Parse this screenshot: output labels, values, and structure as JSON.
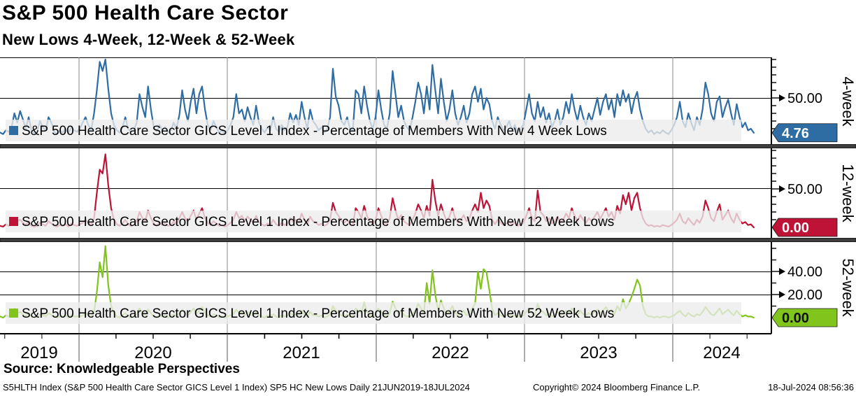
{
  "header": {
    "title": "S&P 500 Health Care Sector",
    "subtitle": "New Lows 4-Week, 12-Week & 52-Week"
  },
  "x_axis": {
    "years": [
      "2019",
      "2020",
      "2021",
      "2022",
      "2023",
      "2024"
    ]
  },
  "footer": {
    "source": "Source: Knowledgeable Perspectives",
    "ticker_line": "S5HLTH Index (S&P 500 Health Care Sector GICS Level 1 Index) SP5 HC New Lows  Daily 21JUN2019-18JUL2024",
    "copyright": "Copyright© 2024 Bloomberg Finance L.P.",
    "timestamp": "18-Jul-2024 08:56:36"
  },
  "chart_data": {
    "type": "line",
    "title": "S&P 500 Health Care Sector",
    "subtitle": "New Lows 4-Week, 12-Week & 52-Week",
    "x_range": "21JUN2019 to 18JUL2024, weekly samples, year gridlines at each January",
    "legend_position": "inside lower-left band of each panel",
    "grid": "on",
    "panels": [
      {
        "axis_label": "4-week",
        "legend": "S&P 500 Health Care Sector GICS Level 1 Index - Percentage of Members With New 4 Week Lows",
        "color": "#2e6da4",
        "value_text_color": "#ffffff",
        "last_value": "4.76",
        "ylim": [
          0,
          103
        ],
        "yticks": [
          {
            "v": 50,
            "label": "50.00"
          }
        ],
        "minor_ticks": [
          10,
          20,
          30,
          40,
          60,
          70,
          80,
          90,
          100
        ],
        "values": [
          5,
          3,
          8,
          6,
          12,
          30,
          18,
          33,
          22,
          10,
          25,
          8,
          4,
          6,
          20,
          12,
          8,
          25,
          18,
          6,
          3,
          8,
          5,
          10,
          4,
          12,
          8,
          6,
          10,
          18,
          25,
          15,
          8,
          30,
          60,
          97,
          85,
          100,
          62,
          30,
          15,
          8,
          5,
          12,
          25,
          10,
          6,
          8,
          18,
          55,
          38,
          25,
          65,
          35,
          12,
          6,
          15,
          8,
          12,
          5,
          8,
          18,
          10,
          28,
          60,
          35,
          20,
          45,
          62,
          30,
          55,
          65,
          35,
          15,
          8,
          20,
          12,
          5,
          8,
          3,
          8,
          15,
          25,
          55,
          30,
          35,
          20,
          38,
          25,
          15,
          40,
          18,
          10,
          5,
          12,
          8,
          25,
          10,
          6,
          15,
          8,
          12,
          30,
          18,
          28,
          15,
          45,
          25,
          10,
          35,
          20,
          15,
          8,
          12,
          5,
          10,
          25,
          88,
          52,
          40,
          20,
          15,
          25,
          10,
          8,
          60,
          55,
          30,
          65,
          40,
          20,
          10,
          25,
          60,
          35,
          15,
          10,
          30,
          85,
          55,
          25,
          40,
          20,
          12,
          8,
          25,
          45,
          70,
          55,
          30,
          65,
          35,
          93,
          60,
          30,
          75,
          45,
          20,
          35,
          60,
          30,
          15,
          25,
          40,
          18,
          30,
          55,
          65,
          45,
          62,
          35,
          50,
          42,
          20,
          10,
          25,
          15,
          8,
          12,
          20,
          8,
          15,
          5,
          10,
          15,
          35,
          55,
          30,
          20,
          45,
          25,
          38,
          18,
          30,
          12,
          20,
          35,
          15,
          25,
          45,
          30,
          55,
          35,
          20,
          40,
          25,
          15,
          30,
          20,
          35,
          50,
          28,
          45,
          55,
          35,
          48,
          25,
          55,
          40,
          60,
          45,
          55,
          30,
          48,
          58,
          35,
          20,
          10,
          5,
          8,
          3,
          6,
          4,
          8,
          5,
          3,
          8,
          15,
          25,
          45,
          20,
          12,
          30,
          18,
          8,
          25,
          15,
          35,
          70,
          55,
          30,
          20,
          45,
          52,
          25,
          38,
          48,
          30,
          15,
          42,
          25,
          12,
          18,
          8,
          10,
          4.76
        ]
      },
      {
        "axis_label": "12-week",
        "legend": "S&P 500 Health Care Sector GICS Level 1 Index - Percentage of Members With New 12 Week Lows",
        "color": "#be1336",
        "value_text_color": "#ffffff",
        "last_value": "0.00",
        "ylim": [
          0,
          103
        ],
        "yticks": [
          {
            "v": 50,
            "label": "50.00"
          }
        ],
        "minor_ticks": [
          10,
          20,
          30,
          40,
          60,
          70,
          80,
          90,
          100
        ],
        "values": [
          2,
          1,
          4,
          2,
          6,
          12,
          8,
          10,
          6,
          3,
          8,
          2,
          1,
          2,
          6,
          4,
          2,
          8,
          5,
          2,
          1,
          3,
          2,
          4,
          1,
          5,
          3,
          2,
          4,
          6,
          10,
          6,
          3,
          12,
          45,
          75,
          70,
          95,
          55,
          25,
          10,
          4,
          2,
          5,
          10,
          4,
          2,
          3,
          8,
          20,
          12,
          8,
          22,
          12,
          5,
          2,
          6,
          3,
          5,
          2,
          3,
          8,
          4,
          12,
          20,
          12,
          8,
          15,
          22,
          10,
          18,
          25,
          12,
          6,
          3,
          8,
          5,
          2,
          3,
          1,
          3,
          6,
          10,
          20,
          12,
          15,
          8,
          14,
          10,
          6,
          15,
          7,
          4,
          2,
          5,
          3,
          10,
          4,
          2,
          6,
          3,
          5,
          12,
          7,
          10,
          6,
          18,
          10,
          4,
          14,
          8,
          6,
          3,
          5,
          2,
          4,
          10,
          32,
          20,
          15,
          8,
          6,
          10,
          4,
          3,
          25,
          20,
          12,
          28,
          15,
          8,
          4,
          10,
          25,
          15,
          6,
          4,
          12,
          38,
          22,
          10,
          16,
          8,
          5,
          3,
          10,
          18,
          30,
          22,
          12,
          28,
          15,
          62,
          35,
          15,
          30,
          18,
          8,
          14,
          25,
          12,
          6,
          10,
          16,
          8,
          12,
          22,
          30,
          20,
          45,
          25,
          35,
          28,
          10,
          4,
          10,
          6,
          3,
          5,
          8,
          3,
          6,
          2,
          4,
          6,
          15,
          25,
          12,
          8,
          48,
          20,
          16,
          8,
          12,
          5,
          8,
          14,
          6,
          10,
          18,
          12,
          25,
          15,
          8,
          16,
          10,
          6,
          12,
          8,
          14,
          20,
          11,
          18,
          25,
          14,
          20,
          10,
          28,
          18,
          42,
          30,
          45,
          22,
          38,
          45,
          25,
          12,
          5,
          2,
          3,
          1,
          2,
          1,
          3,
          2,
          1,
          3,
          6,
          10,
          18,
          8,
          5,
          12,
          7,
          3,
          10,
          6,
          14,
          35,
          25,
          12,
          8,
          20,
          30,
          10,
          16,
          22,
          12,
          6,
          18,
          10,
          5,
          7,
          3,
          4,
          0
        ]
      },
      {
        "axis_label": "52-week",
        "legend": "S&P 500 Health Care Sector GICS Level 1 Index - Percentage of Members With New 52 Week Lows",
        "color": "#80c41c",
        "value_text_color": "#111111",
        "last_value": "0.00",
        "ylim": [
          0,
          66
        ],
        "yticks": [
          {
            "v": 40,
            "label": "40.00"
          },
          {
            "v": 20,
            "label": "20.00"
          }
        ],
        "minor_ticks": [
          10,
          30,
          50,
          60
        ],
        "values": [
          1,
          0,
          2,
          1,
          3,
          8,
          4,
          5,
          3,
          1,
          4,
          1,
          0,
          1,
          3,
          2,
          1,
          4,
          2,
          1,
          0,
          1,
          1,
          2,
          0,
          2,
          1,
          1,
          1,
          2,
          4,
          2,
          1,
          5,
          22,
          48,
          35,
          62,
          28,
          10,
          4,
          1,
          0,
          2,
          4,
          1,
          0,
          1,
          3,
          8,
          4,
          2,
          7,
          4,
          1,
          0,
          2,
          1,
          2,
          0,
          1,
          3,
          1,
          4,
          7,
          4,
          2,
          5,
          8,
          3,
          6,
          9,
          4,
          2,
          1,
          3,
          2,
          0,
          1,
          0,
          1,
          2,
          3,
          7,
          4,
          5,
          2,
          5,
          3,
          2,
          5,
          2,
          1,
          0,
          2,
          1,
          3,
          1,
          0,
          2,
          1,
          2,
          4,
          2,
          3,
          2,
          6,
          3,
          1,
          5,
          2,
          2,
          1,
          2,
          0,
          1,
          3,
          10,
          6,
          4,
          2,
          1,
          3,
          1,
          1,
          8,
          6,
          4,
          13,
          5,
          2,
          1,
          3,
          8,
          5,
          2,
          1,
          4,
          14,
          8,
          3,
          6,
          2,
          1,
          1,
          3,
          6,
          12,
          8,
          4,
          30,
          12,
          41,
          20,
          6,
          15,
          8,
          3,
          5,
          10,
          4,
          2,
          3,
          6,
          2,
          4,
          8,
          12,
          40,
          25,
          42,
          39,
          24,
          8,
          2,
          4,
          2,
          1,
          2,
          3,
          1,
          2,
          1,
          1,
          2,
          5,
          8,
          4,
          2,
          12,
          6,
          5,
          2,
          4,
          1,
          2,
          5,
          2,
          3,
          6,
          4,
          8,
          5,
          2,
          6,
          3,
          2,
          4,
          2,
          5,
          7,
          4,
          6,
          9,
          5,
          7,
          3,
          10,
          6,
          16,
          8,
          12,
          18,
          25,
          33,
          28,
          10,
          3,
          1,
          1,
          0,
          1,
          0,
          1,
          1,
          0,
          1,
          2,
          4,
          6,
          3,
          1,
          4,
          2,
          1,
          3,
          2,
          5,
          9,
          6,
          3,
          2,
          5,
          8,
          3,
          5,
          7,
          4,
          2,
          6,
          3,
          1,
          2,
          1,
          1,
          0
        ]
      }
    ]
  }
}
